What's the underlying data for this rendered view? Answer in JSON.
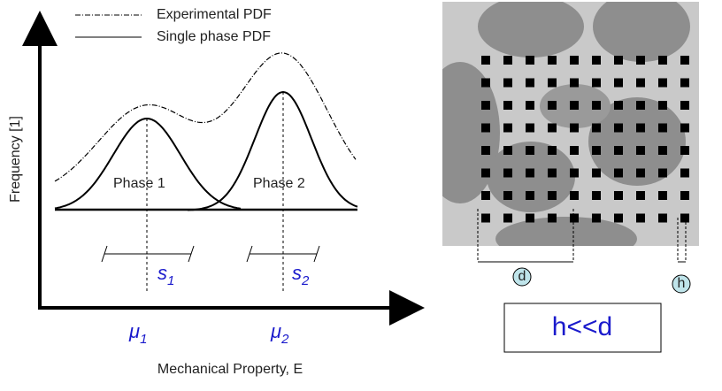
{
  "legend": {
    "experimental": "Experimental  PDF",
    "single": "Single phase PDF"
  },
  "axes": {
    "y_label": "Frequency [1]",
    "x_label": "Mechanical Property, E"
  },
  "phases": [
    {
      "label": "Phase 1",
      "spread": {
        "symbol": "s",
        "subscript": "1"
      },
      "mean": {
        "symbol": "μ",
        "subscript": "1"
      }
    },
    {
      "label": "Phase 2",
      "spread": {
        "symbol": "s",
        "subscript": "2"
      },
      "mean": {
        "symbol": "μ",
        "subscript": "2"
      }
    }
  ],
  "micrograph": {
    "d_label": "d",
    "h_label": "h",
    "relation": "h<<d"
  }
}
